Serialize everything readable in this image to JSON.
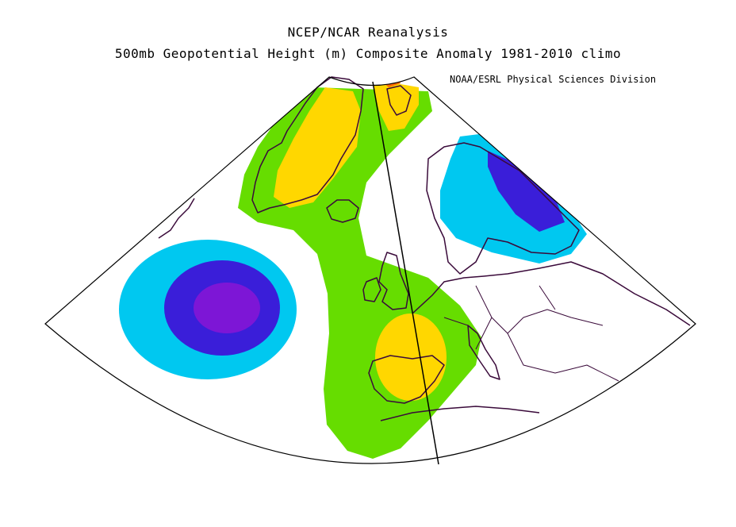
{
  "title": {
    "line1": "NCEP/NCAR Reanalysis",
    "line2": "500mb Geopotential Height (m) Composite Anomaly 1981-2010 climo"
  },
  "credit": "NOAA/ESRL Physical Sciences Division",
  "colors": {
    "strong_negative": "#7d16d6",
    "moderate_negative": "#3a1ed9",
    "weak_negative": "#00c8f0",
    "neutral": "#ffffff",
    "weak_positive": "#66dd00",
    "moderate_positive": "#ffd700",
    "strong_positive": "#ff6a00",
    "coastline": "#3a0a3a",
    "frame": "#000000"
  },
  "map": {
    "projection": "conic sector",
    "region": "North Atlantic and Europe",
    "features": [
      "negative-anomaly-center-atlantic",
      "negative-anomaly-scandinavia",
      "positive-anomaly-greenland",
      "positive-anomaly-iberia",
      "positive-anomaly-arctic"
    ]
  }
}
